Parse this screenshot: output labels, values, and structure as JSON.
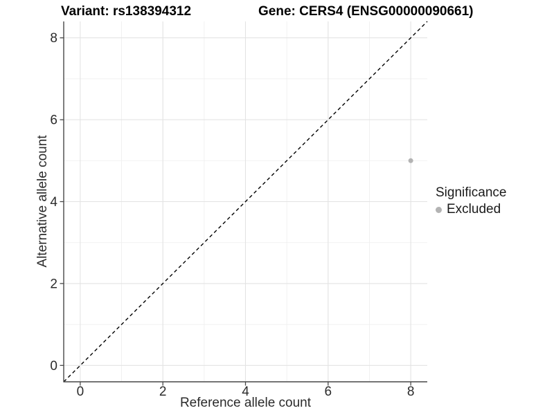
{
  "chart_data": {
    "type": "scatter",
    "title_left": "Variant: rs138394312",
    "title_right": "Gene: CERS4 (ENSG00000090661)",
    "xlabel": "Reference allele count",
    "ylabel": "Alternative allele count",
    "xlim": [
      -0.4,
      8.4
    ],
    "ylim": [
      -0.4,
      8.4
    ],
    "xticks": [
      0,
      2,
      4,
      6,
      8
    ],
    "yticks": [
      0,
      2,
      4,
      6,
      8
    ],
    "minor_ticks": [
      1,
      3,
      5,
      7
    ],
    "grid": "major+minor",
    "reference_line": {
      "type": "identity y=x",
      "style": "dashed",
      "color": "#000000"
    },
    "series": [
      {
        "name": "Excluded",
        "color": "#b3b3b3",
        "marker": "circle",
        "marker_px": 7,
        "points": [
          [
            8,
            5
          ]
        ]
      }
    ],
    "legend": {
      "title": "Significance",
      "position": "right",
      "items": [
        {
          "label": "Excluded",
          "color": "#b3b3b3"
        }
      ]
    },
    "colors": {
      "grid_major": "#e3e3e3",
      "grid_minor": "#f0f0f0",
      "axis_line": "#474747",
      "tick_text": "#2b2b2b",
      "background": "#ffffff"
    }
  }
}
